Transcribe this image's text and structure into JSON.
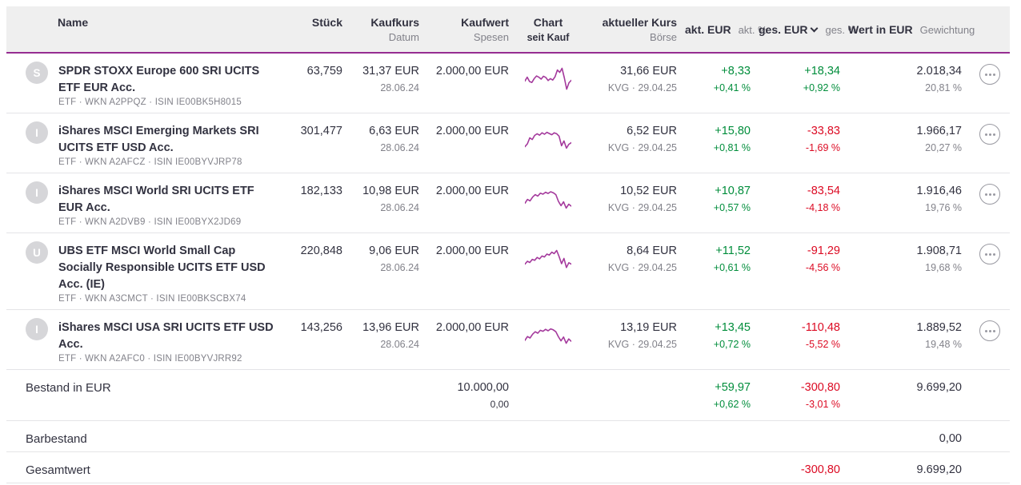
{
  "header": {
    "col_name": "Name",
    "col_stueck": "Stück",
    "col_kaufkurs": "Kaufkurs",
    "col_kaufkurs_sub": "Datum",
    "col_kaufwert": "Kaufwert",
    "col_kaufwert_sub": "Spesen",
    "col_chart": "Chart",
    "col_chart_sub": "seit Kauf",
    "col_akt_kurs": "aktueller Kurs",
    "col_akt_kurs_sub": "Börse",
    "col_akt_eur": "akt. EUR",
    "col_akt_pct": "akt. %",
    "col_ges_eur": "ges. EUR",
    "col_ges_pct": "ges. %",
    "col_wert": "Wert in EUR",
    "col_gewichtung": "Gewichtung"
  },
  "rows": [
    {
      "initial": "S",
      "name": "SPDR STOXX Europe 600 SRI UCITS ETF EUR Acc.",
      "meta": "ETF · WKN A2PPQZ · ISIN IE00BK5H8015",
      "stueck": "63,759",
      "kaufkurs": "31,37 EUR",
      "datum": "28.06.24",
      "kaufwert": "2.000,00 EUR",
      "akt_kurs": "31,66 EUR",
      "boerse": "KVG · 29.04.25",
      "akt_eur": "+8,33",
      "akt_pct": "+0,41 %",
      "ges_eur": "+18,34",
      "ges_pct": "+0,92 %",
      "wert": "2.018,34",
      "gewichtung": "20,81 %",
      "spark": [
        42,
        58,
        40,
        36,
        52,
        63,
        58,
        50,
        62,
        57,
        44,
        52,
        46,
        60,
        88,
        78,
        95,
        55,
        8,
        35,
        45
      ]
    },
    {
      "initial": "I",
      "name": "iShares MSCI Emerging Markets SRI UCITS ETF USD Acc.",
      "meta": "ETF · WKN A2AFCZ · ISIN IE00BYVJRP78",
      "stueck": "301,477",
      "kaufkurs": "6,63 EUR",
      "datum": "28.06.24",
      "kaufwert": "2.000,00 EUR",
      "akt_kurs": "6,52 EUR",
      "boerse": "KVG · 29.04.25",
      "akt_eur": "+15,80",
      "akt_pct": "+0,81 %",
      "ges_eur": "-33,83",
      "ges_pct": "-1,69 %",
      "wert": "1.966,17",
      "gewichtung": "20,27 %",
      "spark": [
        18,
        30,
        55,
        48,
        65,
        72,
        66,
        76,
        70,
        78,
        73,
        68,
        76,
        72,
        62,
        22,
        42,
        12,
        28,
        35
      ]
    },
    {
      "initial": "I",
      "name": "iShares MSCI World SRI UCITS ETF EUR Acc.",
      "meta": "ETF · WKN A2DVB9 · ISIN IE00BYX2JD69",
      "stueck": "182,133",
      "kaufkurs": "10,98 EUR",
      "datum": "28.06.24",
      "kaufwert": "2.000,00 EUR",
      "akt_kurs": "10,52 EUR",
      "boerse": "KVG · 29.04.25",
      "akt_eur": "+10,87",
      "akt_pct": "+0,57 %",
      "ges_eur": "-83,54",
      "ges_pct": "-4,18 %",
      "wert": "1.916,46",
      "gewichtung": "19,76 %",
      "spark": [
        32,
        48,
        42,
        58,
        68,
        62,
        74,
        70,
        78,
        73,
        80,
        76,
        68,
        40,
        22,
        38,
        12,
        28,
        20
      ]
    },
    {
      "initial": "U",
      "name": "UBS ETF MSCI World Small Cap Socially Responsible UCITS ETF USD Acc. (IE)",
      "meta": "ETF · WKN A3CMCT · ISIN IE00BKSCBX74",
      "stueck": "220,848",
      "kaufkurs": "9,06 EUR",
      "datum": "28.06.24",
      "kaufwert": "2.000,00 EUR",
      "akt_kurs": "8,64 EUR",
      "boerse": "KVG · 29.04.25",
      "akt_eur": "+11,52",
      "akt_pct": "+0,61 %",
      "ges_eur": "-91,29",
      "ges_pct": "-4,56 %",
      "wert": "1.908,71",
      "gewichtung": "19,68 %",
      "spark": [
        28,
        40,
        35,
        48,
        44,
        56,
        50,
        62,
        58,
        70,
        66,
        78,
        72,
        85,
        60,
        30,
        52,
        14,
        34,
        28
      ]
    },
    {
      "initial": "I",
      "name": "iShares MSCI USA SRI UCITS ETF USD Acc.",
      "meta": "ETF · WKN A2AFC0 · ISIN IE00BYVJRR92",
      "stueck": "143,256",
      "kaufkurs": "13,96 EUR",
      "datum": "28.06.24",
      "kaufwert": "2.000,00 EUR",
      "akt_kurs": "13,19 EUR",
      "boerse": "KVG · 29.04.25",
      "akt_eur": "+13,45",
      "akt_pct": "+0,72 %",
      "ges_eur": "-110,48",
      "ges_pct": "-5,52 %",
      "wert": "1.889,52",
      "gewichtung": "19,48 %",
      "spark": [
        30,
        46,
        40,
        56,
        66,
        60,
        72,
        68,
        76,
        70,
        78,
        74,
        66,
        45,
        28,
        44,
        18,
        36,
        26
      ]
    }
  ],
  "summary": {
    "bestand": {
      "label": "Bestand in EUR",
      "kaufwert": "10.000,00",
      "spesen": "0,00",
      "akt_eur": "+59,97",
      "akt_pct": "+0,62 %",
      "ges_eur": "-300,80",
      "ges_pct": "-3,01 %",
      "wert": "9.699,20"
    },
    "barbestand": {
      "label": "Barbestand",
      "wert": "0,00"
    },
    "gesamtwert": {
      "label": "Gesamtwert",
      "ges_eur": "-300,80",
      "wert": "9.699,20"
    }
  },
  "colors": {
    "accent_purple": "#962d91",
    "sparkline_magenta": "#a4399c",
    "positive_green": "#008d3b",
    "negative_red": "#dc0a23",
    "header_background": "#efefef",
    "text_dark": "#323240",
    "text_gray": "#82828a"
  }
}
